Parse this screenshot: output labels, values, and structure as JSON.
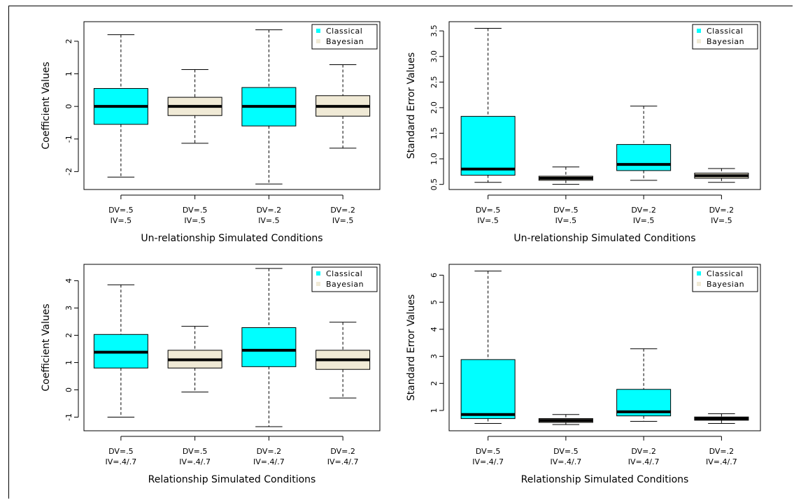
{
  "colors": {
    "classical": "#00ffff",
    "bayesian": "#f0ead6",
    "axis": "#000000"
  },
  "chart_data": [
    {
      "type": "box",
      "ylabel": "Coefficient Values",
      "xlabel": "Un-relationship Simulated Conditions",
      "yticks": [
        "-2",
        "-1",
        "0",
        "1",
        "2"
      ],
      "ytick_values": [
        -2,
        -1,
        0,
        1,
        2
      ],
      "ylim": [
        -2.55,
        2.6
      ],
      "categories": [
        [
          "DV=.5",
          "IV=.5"
        ],
        [
          "DV=.5",
          "IV=.5"
        ],
        [
          "DV=.2",
          "IV=.5"
        ],
        [
          "DV=.2",
          "IV=.5"
        ]
      ],
      "legend": [
        "Classical",
        "Bayesian"
      ],
      "legend_position": "top-right",
      "boxes": [
        {
          "series": "Classical",
          "min": -2.17,
          "q1": -0.55,
          "median": 0.0,
          "q3": 0.55,
          "max": 2.2
        },
        {
          "series": "Bayesian",
          "min": -1.13,
          "q1": -0.28,
          "median": 0.0,
          "q3": 0.28,
          "max": 1.13
        },
        {
          "series": "Classical",
          "min": -2.38,
          "q1": -0.6,
          "median": 0.0,
          "q3": 0.58,
          "max": 2.35
        },
        {
          "series": "Bayesian",
          "min": -1.28,
          "q1": -0.3,
          "median": 0.0,
          "q3": 0.33,
          "max": 1.28
        }
      ]
    },
    {
      "type": "box",
      "ylabel": "Standard Error Values",
      "xlabel": "Un-relationship Simulated Conditions",
      "yticks": [
        "0.5",
        "1.0",
        "1.5",
        "2.0",
        "2.5",
        "3.0",
        "3.5"
      ],
      "ytick_values": [
        0.5,
        1.0,
        1.5,
        2.0,
        2.5,
        3.0,
        3.5
      ],
      "ylim": [
        0.4,
        3.68
      ],
      "categories": [
        [
          "DV=.5",
          "IV=.5"
        ],
        [
          "DV=.5",
          "IV=.5"
        ],
        [
          "DV=.2",
          "IV=.5"
        ],
        [
          "DV=.2",
          "IV=.5"
        ]
      ],
      "legend": [
        "Classical",
        "Bayesian"
      ],
      "legend_position": "top-right",
      "boxes": [
        {
          "series": "Classical",
          "min": 0.54,
          "q1": 0.68,
          "median": 0.8,
          "q3": 1.83,
          "max": 3.55
        },
        {
          "series": "Bayesian",
          "min": 0.5,
          "q1": 0.58,
          "median": 0.62,
          "q3": 0.66,
          "max": 0.84
        },
        {
          "series": "Classical",
          "min": 0.58,
          "q1": 0.77,
          "median": 0.89,
          "q3": 1.28,
          "max": 2.03
        },
        {
          "series": "Bayesian",
          "min": 0.54,
          "q1": 0.62,
          "median": 0.67,
          "q3": 0.72,
          "max": 0.81
        }
      ]
    },
    {
      "type": "box",
      "ylabel": "Coefficient Values",
      "xlabel": "Relationship Simulated Conditions",
      "yticks": [
        "-1",
        "0",
        "1",
        "2",
        "3",
        "4"
      ],
      "ytick_values": [
        -1,
        0,
        1,
        2,
        3,
        4
      ],
      "ylim": [
        -1.5,
        4.6
      ],
      "categories": [
        [
          "DV=.5",
          "IV=.4/.7"
        ],
        [
          "DV=.5",
          "IV=.4/.7"
        ],
        [
          "DV=.2",
          "IV=.4/.7"
        ],
        [
          "DV=.2",
          "IV=.4/.7"
        ]
      ],
      "legend": [
        "Classical",
        "Bayesian"
      ],
      "legend_position": "top-right",
      "boxes": [
        {
          "series": "Classical",
          "min": -1.0,
          "q1": 0.8,
          "median": 1.38,
          "q3": 2.03,
          "max": 3.85
        },
        {
          "series": "Bayesian",
          "min": -0.08,
          "q1": 0.8,
          "median": 1.1,
          "q3": 1.45,
          "max": 2.33
        },
        {
          "series": "Classical",
          "min": -1.35,
          "q1": 0.85,
          "median": 1.45,
          "q3": 2.28,
          "max": 4.45
        },
        {
          "series": "Bayesian",
          "min": -0.3,
          "q1": 0.75,
          "median": 1.1,
          "q3": 1.45,
          "max": 2.48
        }
      ]
    },
    {
      "type": "box",
      "ylabel": "Standard Error Values",
      "xlabel": "Relationship Simulated Conditions",
      "yticks": [
        "1",
        "2",
        "3",
        "4",
        "5",
        "6"
      ],
      "ytick_values": [
        1,
        2,
        3,
        4,
        5,
        6
      ],
      "ylim": [
        0.25,
        6.4
      ],
      "categories": [
        [
          "DV=.5",
          "IV=.4/.7"
        ],
        [
          "DV=.5",
          "IV=.4/.7"
        ],
        [
          "DV=.2",
          "IV=.4/.7"
        ],
        [
          "DV=.2",
          "IV=.4/.7"
        ]
      ],
      "legend": [
        "Classical",
        "Bayesian"
      ],
      "legend_position": "top-right",
      "boxes": [
        {
          "series": "Classical",
          "min": 0.52,
          "q1": 0.7,
          "median": 0.85,
          "q3": 2.88,
          "max": 6.15
        },
        {
          "series": "Bayesian",
          "min": 0.48,
          "q1": 0.56,
          "median": 0.63,
          "q3": 0.7,
          "max": 0.85
        },
        {
          "series": "Classical",
          "min": 0.6,
          "q1": 0.8,
          "median": 0.95,
          "q3": 1.78,
          "max": 3.28
        },
        {
          "series": "Bayesian",
          "min": 0.52,
          "q1": 0.64,
          "median": 0.7,
          "q3": 0.76,
          "max": 0.88
        }
      ]
    }
  ]
}
